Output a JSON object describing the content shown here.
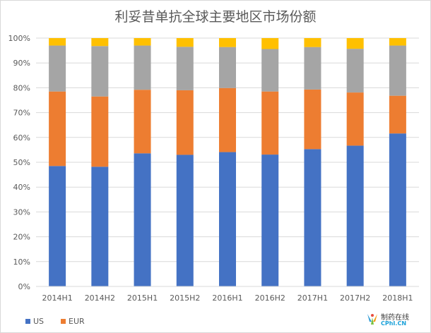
{
  "chart_data": {
    "type": "bar",
    "stacked": true,
    "title": "利妥昔单抗全球主要地区市场份额",
    "categories": [
      "2014H1",
      "2014H2",
      "2015H1",
      "2015H2",
      "2016H1",
      "2016H2",
      "2017H1",
      "2017H2",
      "2018H1"
    ],
    "yticks": [
      "0%",
      "10%",
      "20%",
      "30%",
      "40%",
      "50%",
      "60%",
      "70%",
      "80%",
      "90%",
      "100%"
    ],
    "ylim": [
      0,
      100
    ],
    "grid": true,
    "legend_position": "bottom-left",
    "series": [
      {
        "name": "US",
        "color": "#4472c4",
        "values": [
          48.5,
          48.2,
          53.6,
          53.0,
          54.1,
          53.1,
          55.3,
          56.7,
          61.6
        ]
      },
      {
        "name": "EUR",
        "color": "#ed7d31",
        "values": [
          30.0,
          28.3,
          25.6,
          26.0,
          25.8,
          25.4,
          24.0,
          21.4,
          15.2
        ]
      },
      {
        "name": "",
        "color": "#a5a5a5",
        "values": [
          18.5,
          20.3,
          17.8,
          17.5,
          16.5,
          17.1,
          17.1,
          17.6,
          20.2
        ]
      },
      {
        "name": "",
        "color": "#ffc000",
        "values": [
          3.0,
          3.2,
          3.0,
          3.5,
          3.6,
          4.4,
          3.6,
          4.3,
          3.0
        ]
      }
    ],
    "legend": [
      {
        "label": "US",
        "color": "#4472c4"
      },
      {
        "label": "EUR",
        "color": "#ed7d31"
      }
    ]
  },
  "watermark": {
    "name": "制药在线",
    "url": "CPhI.CN"
  }
}
